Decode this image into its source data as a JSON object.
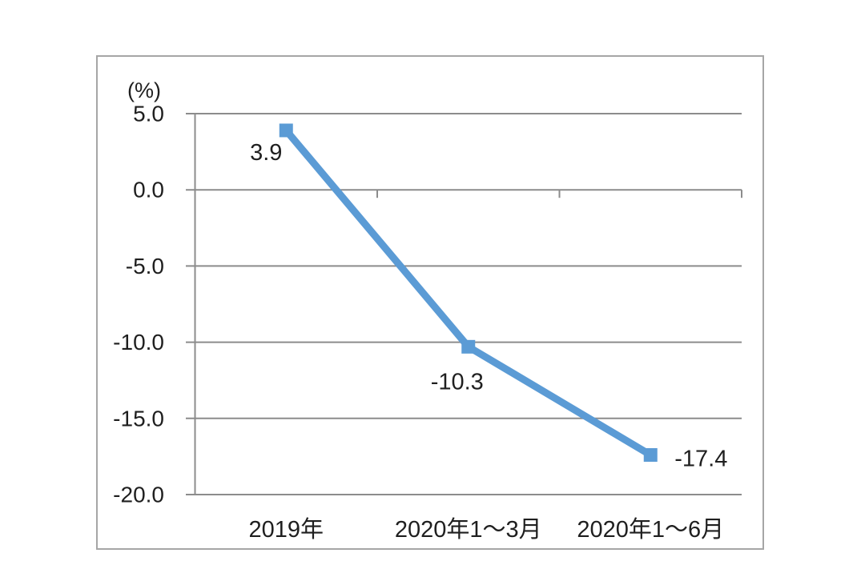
{
  "page": {
    "background": "#ffffff"
  },
  "chart_data": {
    "type": "line",
    "title": "",
    "xlabel": "",
    "ylabel": "(%)",
    "categories": [
      "2019年",
      "2020年1～3月",
      "2020年1～6月"
    ],
    "series": [
      {
        "name": "",
        "values": [
          3.9,
          -10.3,
          -17.4
        ]
      }
    ],
    "data_labels": [
      "3.9",
      "-10.3",
      "-17.4"
    ],
    "y_ticks": [
      "5.0",
      "0.0",
      "-5.0",
      "-10.0",
      "-15.0",
      "-20.0"
    ],
    "y_tick_values": [
      5,
      0,
      -5,
      -10,
      -15,
      -20
    ],
    "ylim": [
      -20,
      5
    ],
    "grid": "horizontal",
    "legend": "none",
    "marker": "square",
    "colors": {
      "line": "#5b9bd5",
      "marker": "#5b9bd5",
      "gridline": "#8c8c8c",
      "axis": "#8c8c8c",
      "frame": "#a6a6a6",
      "text": "#1f1f1f"
    }
  }
}
